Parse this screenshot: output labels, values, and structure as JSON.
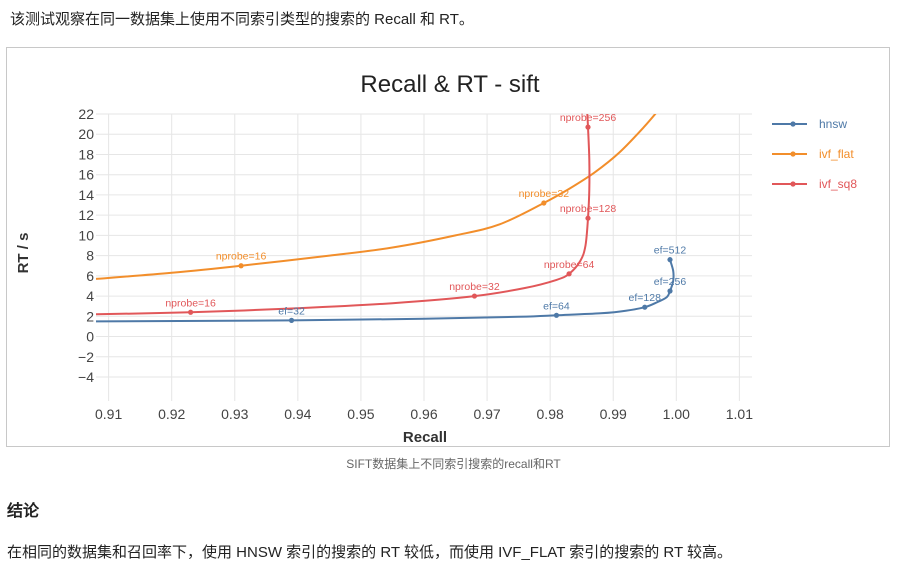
{
  "intro_text": "该测试观察在同一数据集上使用不同索引类型的搜索的 Recall 和 RT。",
  "caption": "SIFT数据集上不同索引搜索的recall和RT",
  "heading": "结论",
  "conclusion_text": "在相同的数据集和召回率下，使用 HNSW 索引的搜索的 RT 较低，而使用 IVF_FLAT 索引的搜索的 RT 较高。",
  "chart_data": {
    "type": "line",
    "title": "Recall & RT - sift",
    "xlabel": "Recall",
    "ylabel": "RT / s",
    "xlim": [
      0.908,
      1.012
    ],
    "ylim": [
      -4,
      22
    ],
    "x_ticks": [
      0.91,
      0.92,
      0.93,
      0.94,
      0.95,
      0.96,
      0.97,
      0.98,
      0.99,
      1.0,
      1.01
    ],
    "x_tick_labels": [
      "0.91",
      "0.92",
      "0.93",
      "0.94",
      "0.95",
      "0.96",
      "0.97",
      "0.98",
      "0.99",
      "1.00",
      "1.01"
    ],
    "y_ticks": [
      -4,
      -2,
      0,
      2,
      4,
      6,
      8,
      10,
      12,
      14,
      16,
      18,
      20,
      22
    ],
    "y_tick_labels": [
      "−4",
      "−2",
      "0",
      "2",
      "4",
      "6",
      "8",
      "10",
      "12",
      "14",
      "16",
      "18",
      "20",
      "22"
    ],
    "grid": true,
    "legend_position": "top-right",
    "series": [
      {
        "name": "hnsw",
        "color": "#4e79a7",
        "points": [
          {
            "x": 0.939,
            "y": 1.6,
            "label": "ef=32"
          },
          {
            "x": 0.981,
            "y": 2.1,
            "label": "ef=64"
          },
          {
            "x": 0.995,
            "y": 2.9,
            "label": "ef=128"
          },
          {
            "x": 0.999,
            "y": 4.5,
            "label": "ef=256"
          },
          {
            "x": 0.999,
            "y": 7.6,
            "label": "ef=512"
          }
        ],
        "curve": [
          [
            0.908,
            1.5
          ],
          [
            0.939,
            1.6
          ],
          [
            0.96,
            1.75
          ],
          [
            0.975,
            1.95
          ],
          [
            0.981,
            2.1
          ],
          [
            0.988,
            2.3
          ],
          [
            0.992,
            2.55
          ],
          [
            0.995,
            2.9
          ],
          [
            0.997,
            3.4
          ],
          [
            0.9985,
            3.9
          ],
          [
            0.999,
            4.5
          ],
          [
            0.9995,
            5.5
          ],
          [
            0.9995,
            6.5
          ],
          [
            0.999,
            7.6
          ]
        ]
      },
      {
        "name": "ivf_flat",
        "color": "#f28e2b",
        "points": [
          {
            "x": 0.931,
            "y": 7.0,
            "label": "nprobe=16"
          },
          {
            "x": 0.979,
            "y": 13.2,
            "label": "nprobe=32"
          }
        ],
        "curve": [
          [
            0.908,
            5.7
          ],
          [
            0.92,
            6.3
          ],
          [
            0.931,
            7.0
          ],
          [
            0.945,
            8.0
          ],
          [
            0.955,
            8.8
          ],
          [
            0.965,
            10.0
          ],
          [
            0.972,
            11.1
          ],
          [
            0.979,
            13.2
          ],
          [
            0.983,
            14.6
          ],
          [
            0.987,
            16.2
          ],
          [
            0.991,
            18.2
          ],
          [
            0.995,
            20.8
          ],
          [
            0.998,
            23.0
          ]
        ]
      },
      {
        "name": "ivf_sq8",
        "color": "#e15759",
        "points": [
          {
            "x": 0.923,
            "y": 2.4,
            "label": "nprobe=16"
          },
          {
            "x": 0.968,
            "y": 4.0,
            "label": "nprobe=32"
          },
          {
            "x": 0.983,
            "y": 6.2,
            "label": "nprobe=64"
          },
          {
            "x": 0.986,
            "y": 11.7,
            "label": "nprobe=128"
          },
          {
            "x": 0.986,
            "y": 20.7,
            "label": "nprobe=256"
          }
        ],
        "curve": [
          [
            0.908,
            2.2
          ],
          [
            0.923,
            2.4
          ],
          [
            0.94,
            2.8
          ],
          [
            0.955,
            3.3
          ],
          [
            0.968,
            4.0
          ],
          [
            0.976,
            4.8
          ],
          [
            0.981,
            5.6
          ],
          [
            0.983,
            6.2
          ],
          [
            0.9848,
            7.5
          ],
          [
            0.9856,
            9.0
          ],
          [
            0.986,
            11.7
          ],
          [
            0.9862,
            14.5
          ],
          [
            0.9862,
            17.5
          ],
          [
            0.986,
            20.7
          ],
          [
            0.9858,
            23.0
          ]
        ]
      }
    ]
  }
}
